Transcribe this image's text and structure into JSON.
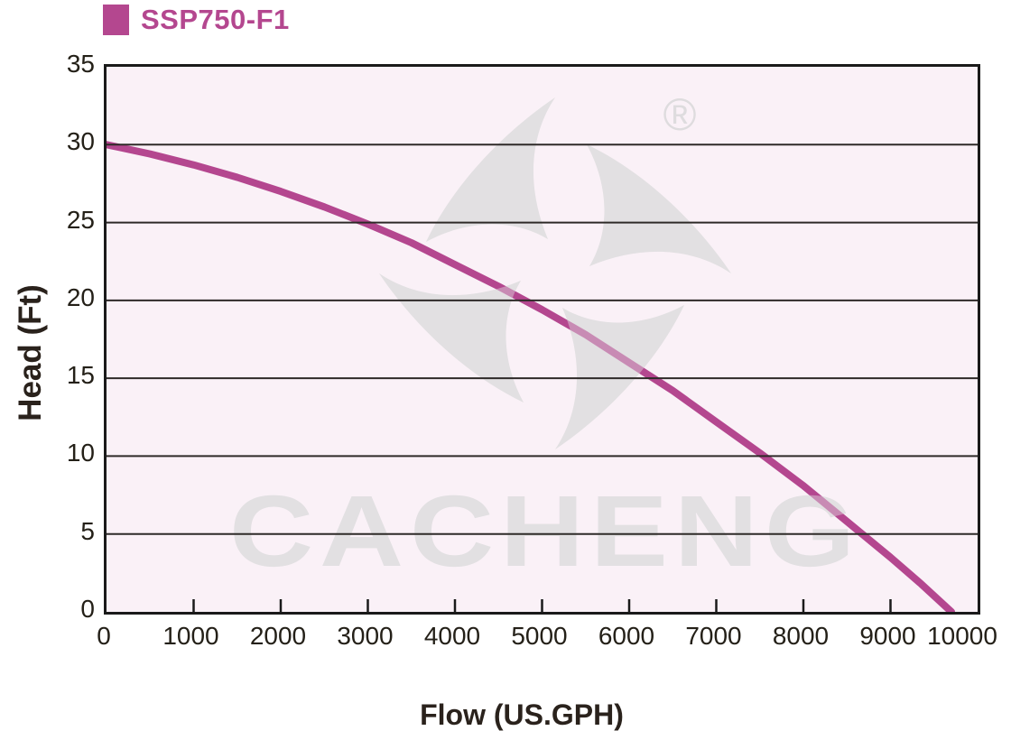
{
  "page": {
    "background": "#ffffff"
  },
  "legend": {
    "label": "SSP750-F1",
    "swatch_color": "#b4478f"
  },
  "watermark": {
    "brand": "CACHENG",
    "registered_mark": "®",
    "color": "#e2e0e2"
  },
  "chart_data": {
    "type": "line",
    "title": "SSP750-F1",
    "xlabel": "Flow (US.GPH)",
    "ylabel": "Head (Ft)",
    "xlim": [
      0,
      10000
    ],
    "ylim": [
      0,
      35
    ],
    "xticks": [
      0,
      1000,
      2000,
      3000,
      4000,
      5000,
      6000,
      7000,
      8000,
      9000,
      10000
    ],
    "yticks": [
      0,
      5,
      10,
      15,
      20,
      25,
      30,
      35
    ],
    "grid": "horizontal gridlines every 5 Ft, no vertical gridlines",
    "legend_position": "top-left above plot",
    "plot_background": "#faf1f7",
    "grid_color": "#2e2a28",
    "axis_color": "#1a1a1a",
    "series": [
      {
        "name": "SSP750-F1",
        "color": "#b4478f",
        "points": [
          [
            0,
            30.0
          ],
          [
            500,
            29.4
          ],
          [
            1000,
            28.7
          ],
          [
            1500,
            27.9
          ],
          [
            2000,
            27.0
          ],
          [
            2500,
            26.0
          ],
          [
            3000,
            24.9
          ],
          [
            3500,
            23.7
          ],
          [
            4000,
            22.3
          ],
          [
            4500,
            20.9
          ],
          [
            5000,
            19.4
          ],
          [
            5500,
            17.8
          ],
          [
            6000,
            16.0
          ],
          [
            6500,
            14.2
          ],
          [
            7000,
            12.2
          ],
          [
            7500,
            10.2
          ],
          [
            8000,
            8.1
          ],
          [
            8500,
            5.8
          ],
          [
            9000,
            3.5
          ],
          [
            9350,
            1.8
          ],
          [
            9700,
            0.0
          ]
        ]
      }
    ]
  }
}
